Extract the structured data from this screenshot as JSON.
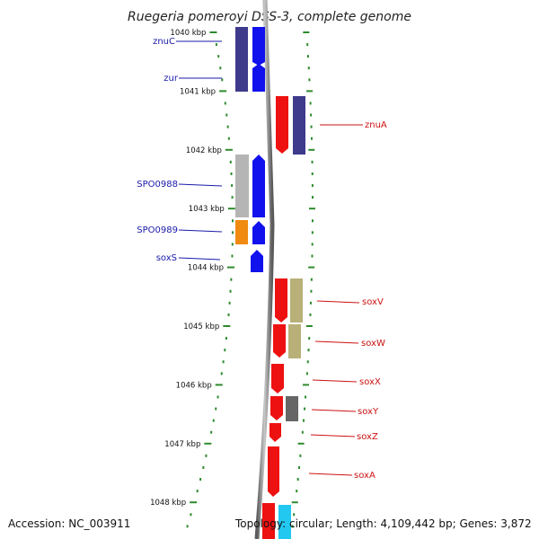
{
  "title": "Ruegeria pomeroyi DSS-3, complete genome",
  "accession": "Accession: NC_003911",
  "topology": "Topology: circular; Length: 4,109,442 bp; Genes: 3,872",
  "ticks": [
    "1040 kbp",
    "1041 kbp",
    "1042 kbp",
    "1043 kbp",
    "1044 kbp",
    "1045 kbp",
    "1046 kbp",
    "1047 kbp",
    "1048 kbp"
  ],
  "genes_left": [
    "znuC",
    "zur",
    "SPO0988",
    "SPO0989",
    "soxS"
  ],
  "genes_right": [
    "znuA",
    "soxV",
    "soxW",
    "soxX",
    "soxY",
    "soxZ",
    "soxA"
  ],
  "colors": {
    "left_label": "#1a1aaa",
    "right_label": "#cc1111",
    "tick": "#2e8b2e",
    "backbone": "#888888",
    "gene_blue": "#1111ee",
    "gene_red": "#ee1111",
    "gene_indigo": "#3e3a8c",
    "gene_gray": "#b5b5b5",
    "gene_orange": "#f08a10",
    "gene_olive": "#b8b078",
    "gene_dark": "#666666",
    "gene_cyan": "#22c8f0"
  }
}
